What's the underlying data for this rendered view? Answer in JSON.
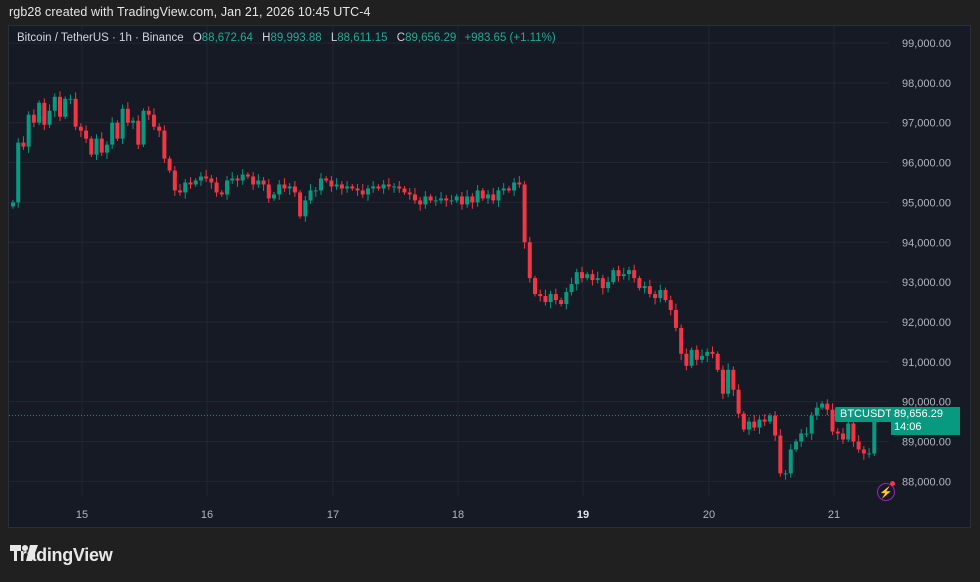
{
  "credit": "rgb28 created with TradingView.com, Jan 21, 2026 10:45 UTC-4",
  "legend": {
    "symbol": "Bitcoin / TetherUS · 1h · Binance",
    "o_label": "O",
    "o_value": "88,672.64",
    "h_label": "H",
    "h_value": "89,993.88",
    "l_label": "L",
    "l_value": "88,611.15",
    "c_label": "C",
    "c_value": "89,656.29",
    "change": "+983.65 (+1.11%)"
  },
  "last_price": {
    "symbol_tag": "BTCUSDT",
    "price": "89,656.29",
    "countdown": "14:06"
  },
  "logo": {
    "text": "TradingView"
  },
  "colors": {
    "up": "#089981",
    "down": "#f23645",
    "background": "#161a25",
    "grid": "#232632",
    "accent_alert": "#9c27b0"
  },
  "chart_data": {
    "type": "candlestick",
    "title": "Bitcoin / TetherUS · 1h · Binance",
    "xlabel": "",
    "ylabel": "",
    "x_ticks": [
      "15",
      "16",
      "17",
      "18",
      "19",
      "20",
      "21"
    ],
    "y_ticks": [
      "99,000.00",
      "98,000.00",
      "97,000.00",
      "96,000.00",
      "95,000.00",
      "94,000.00",
      "93,000.00",
      "92,000.00",
      "91,000.00",
      "90,000.00",
      "89,000.00",
      "88,000.00"
    ],
    "ylim": [
      87900,
      99400
    ],
    "grid": true,
    "last_close": 89656.29,
    "closes": [
      95000,
      96500,
      96400,
      97200,
      97000,
      97500,
      96950,
      97300,
      97650,
      97150,
      97600,
      97600,
      96900,
      96800,
      96600,
      96200,
      96600,
      96250,
      96450,
      97000,
      96600,
      97350,
      97000,
      97050,
      96450,
      97300,
      97200,
      96900,
      96800,
      96100,
      95800,
      95300,
      95250,
      95500,
      95450,
      95550,
      95650,
      95600,
      95500,
      95250,
      95200,
      95550,
      95600,
      95550,
      95700,
      95650,
      95450,
      95550,
      95450,
      95100,
      95200,
      95450,
      95350,
      95400,
      95250,
      94650,
      95050,
      95300,
      95300,
      95600,
      95550,
      95400,
      95450,
      95350,
      95400,
      95350,
      95300,
      95200,
      95350,
      95400,
      95350,
      95450,
      95400,
      95400,
      95350,
      95250,
      95200,
      95050,
      94950,
      95150,
      95050,
      95050,
      95100,
      95050,
      95050,
      95150,
      94950,
      95150,
      95000,
      95300,
      95100,
      95200,
      95050,
      95300,
      95350,
      95300,
      95500,
      95450,
      94000,
      93100,
      92700,
      92650,
      92500,
      92700,
      92550,
      92450,
      92750,
      92950,
      93250,
      93100,
      93200,
      93050,
      93100,
      92850,
      93000,
      93300,
      93150,
      93200,
      93300,
      93100,
      92850,
      92900,
      92700,
      92600,
      92800,
      92550,
      92300,
      91850,
      91200,
      90900,
      91300,
      91050,
      91150,
      91250,
      91200,
      90800,
      90200,
      90800,
      90300,
      89700,
      89300,
      89500,
      89350,
      89550,
      89500,
      89650,
      89150,
      88200,
      88200,
      88800,
      89000,
      89200,
      89200,
      89650,
      89850,
      89950,
      89800,
      89250,
      89200,
      89050,
      89450,
      89000,
      88800,
      88700,
      88700,
      89656
    ]
  }
}
